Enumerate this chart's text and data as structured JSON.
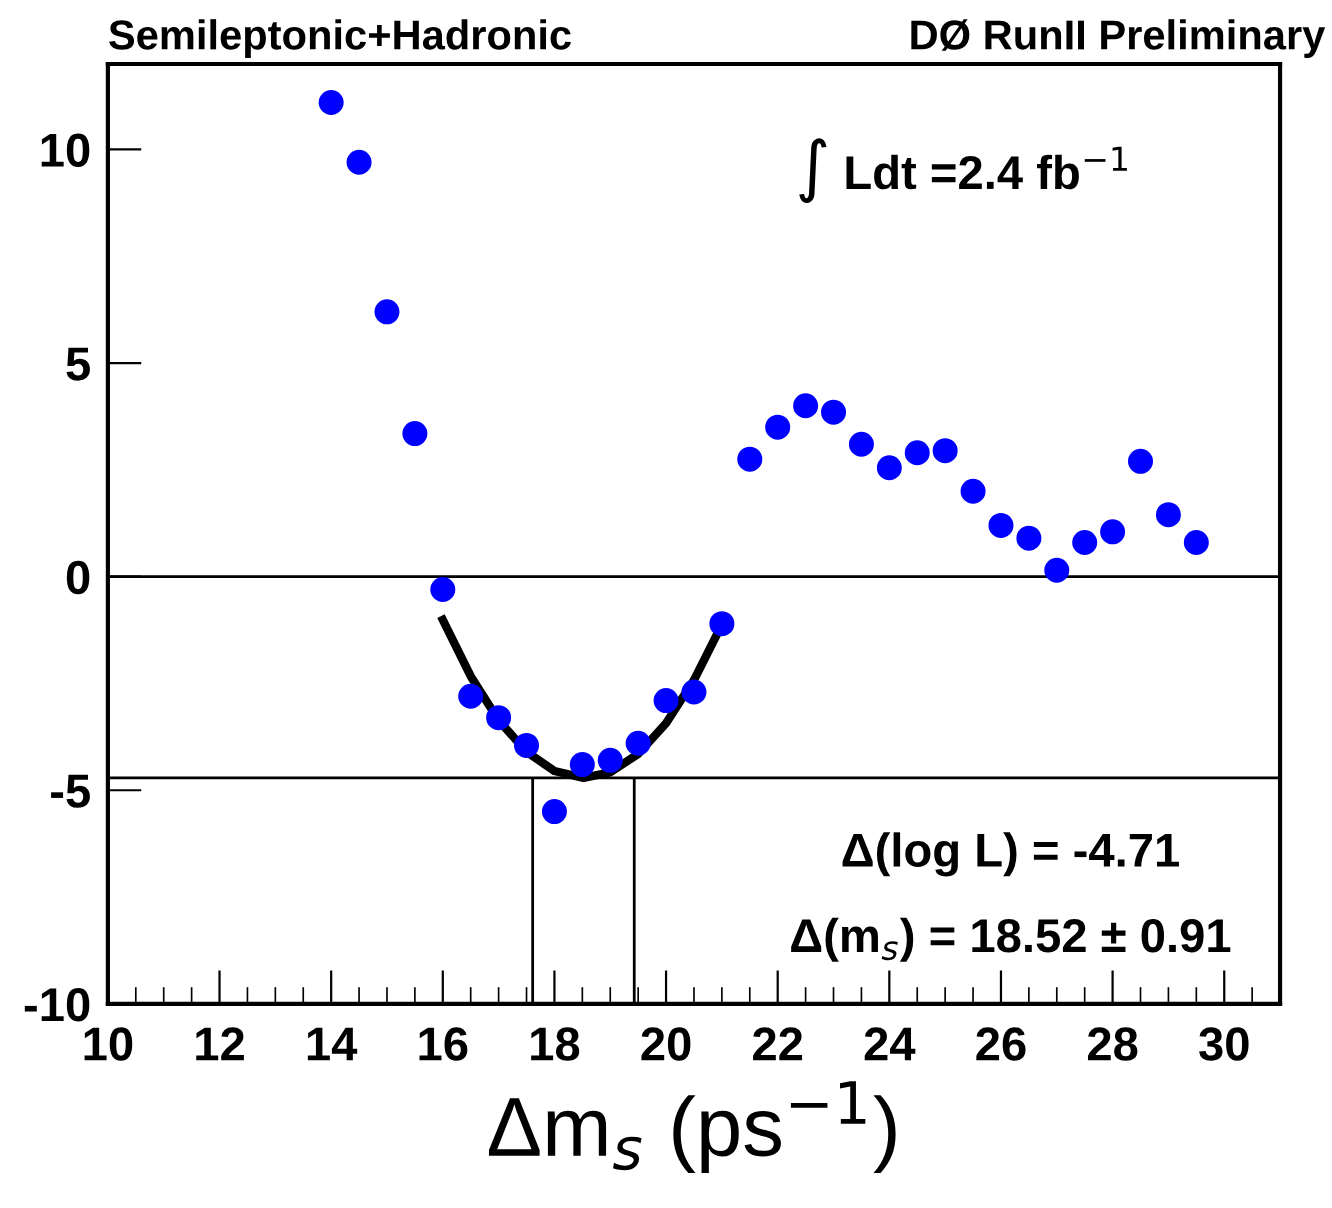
{
  "chart_data": {
    "type": "scatter",
    "title": "Semileptonic+Hadronic",
    "subtitle": "DØ RunII Preliminary",
    "xlabel": "Δm$_{s}$ (ps$^{−1}$)",
    "annotations": [
      "∫ Ldt =2.4 fb$^{−1}$",
      "Δ(log L) = -4.71",
      "Δ(m$_{s}$) = 18.52 ± 0.91"
    ],
    "series": [
      {
        "color": "#0000ff",
        "marker": "circle",
        "x": [
          14,
          14.5,
          15,
          15.5,
          16,
          16.5,
          17,
          17.5,
          18,
          18.5,
          19,
          19.5,
          20,
          20.5,
          21,
          21.5,
          22,
          22.5,
          23,
          23.5,
          24,
          24.5,
          25,
          25.5,
          26,
          26.5,
          27,
          27.5,
          28,
          28.5,
          29,
          29.5
        ],
        "values": [
          11.1,
          9.7,
          6.2,
          3.35,
          -0.3,
          -2.8,
          -3.3,
          -3.95,
          -5.5,
          -4.4,
          -4.3,
          -3.9,
          -2.9,
          -2.7,
          -1.1,
          2.75,
          3.5,
          4.0,
          3.85,
          3.1,
          2.55,
          2.9,
          2.95,
          2.0,
          1.2,
          0.9,
          0.15,
          0.8,
          1.05,
          2.7,
          1.45,
          0.8
        ]
      },
      {
        "type": "line",
        "color": "#000000",
        "marker": "none",
        "line_style": "solid",
        "x": [
          16,
          16.5,
          17,
          17.5,
          18,
          18.52,
          19,
          19.5,
          20,
          20.5,
          21
        ],
        "values": [
          -1.01,
          -2.33,
          -3.36,
          -4.1,
          -4.55,
          -4.71,
          -4.58,
          -4.15,
          -3.43,
          -2.42,
          -1.12
        ]
      }
    ],
    "ref_lines": [
      {
        "axis": "y",
        "value": 0,
        "color": "#000000"
      },
      {
        "axis": "y",
        "value": -4.71,
        "color": "#000000"
      },
      {
        "axis": "x",
        "value": 17.61,
        "color": "#000000"
      },
      {
        "axis": "x",
        "value": 19.43,
        "color": "#000000"
      }
    ],
    "xlim": [
      10,
      31
    ],
    "xticks": [
      10,
      12,
      14,
      16,
      18,
      20,
      22,
      24,
      26,
      28,
      30
    ],
    "ylim": [
      -10,
      12
    ],
    "yticks": [
      -10,
      -5,
      0,
      5,
      10
    ],
    "grid": false,
    "legend": false
  }
}
